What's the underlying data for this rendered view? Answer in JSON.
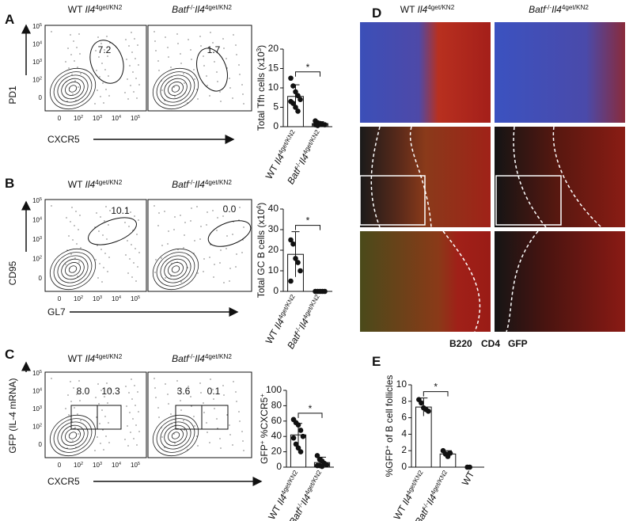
{
  "flow_ticks": [
    [
      {
        "text": "0"
      }
    ],
    [
      {
        "text": "10"
      },
      {
        "text": "2",
        "style": "sup"
      }
    ],
    [
      {
        "text": "10"
      },
      {
        "text": "3",
        "style": "sup"
      }
    ],
    [
      {
        "text": "10"
      },
      {
        "text": "4",
        "style": "sup"
      }
    ],
    [
      {
        "text": "10"
      },
      {
        "text": "5",
        "style": "sup"
      }
    ]
  ],
  "panels": {
    "A": {
      "letter": "A",
      "y_label": "PD1",
      "x_label": "CXCR5",
      "gates": [
        "7.2",
        "1.7"
      ],
      "headers": [
        [
          {
            "text": "WT "
          },
          {
            "text": "Il4",
            "style": "italic"
          },
          {
            "text": "4get/KN2",
            "style": "sup"
          }
        ],
        [
          {
            "text": "Batf",
            "style": "italic"
          },
          {
            "text": "-/-",
            "style": "sup"
          },
          {
            "text": "Il4",
            "style": "italic"
          },
          {
            "text": "4get/KN2",
            "style": "sup"
          }
        ]
      ]
    },
    "B": {
      "letter": "B",
      "y_label": "CD95",
      "x_label": "GL7",
      "gates": [
        "10.1",
        "0.0"
      ],
      "headers": [
        [
          {
            "text": "WT "
          },
          {
            "text": "Il4",
            "style": "italic"
          },
          {
            "text": "4get/KN2",
            "style": "sup"
          }
        ],
        [
          {
            "text": "Batf",
            "style": "italic"
          },
          {
            "text": "-/-",
            "style": "sup"
          },
          {
            "text": "Il4",
            "style": "italic"
          },
          {
            "text": "4get/KN2",
            "style": "sup"
          }
        ]
      ]
    },
    "C": {
      "letter": "C",
      "y_label": "GFP (IL-4 mRNA)",
      "x_label": "CXCR5",
      "gates": [
        "8.0",
        "10.3",
        "3.6",
        "0.1"
      ],
      "headers": [
        [
          {
            "text": "WT "
          },
          {
            "text": "Il4",
            "style": "italic"
          },
          {
            "text": "4get/KN2",
            "style": "sup"
          }
        ],
        [
          {
            "text": "Batf",
            "style": "italic"
          },
          {
            "text": "-/-",
            "style": "sup"
          },
          {
            "text": "Il4",
            "style": "italic"
          },
          {
            "text": "4get/KN2",
            "style": "sup"
          }
        ]
      ]
    },
    "D": {
      "letter": "D",
      "headers": [
        [
          {
            "text": "WT "
          },
          {
            "text": "Il4",
            "style": "italic"
          },
          {
            "text": "4get/KN2",
            "style": "sup"
          }
        ],
        [
          {
            "text": "Batf",
            "style": "italic"
          },
          {
            "text": "-/-",
            "style": "sup"
          },
          {
            "text": "Il4",
            "style": "italic"
          },
          {
            "text": "4get/KN2",
            "style": "sup"
          }
        ]
      ],
      "legend": [
        {
          "text": "B220",
          "color": "#4b5cc4"
        },
        {
          "text": "CD4",
          "color": "#d8262b"
        },
        {
          "text": "GFP",
          "color": "#6cc33a"
        }
      ]
    },
    "E": {
      "letter": "E"
    }
  },
  "chart_data": [
    {
      "type": "bar",
      "color": "#ffffff",
      "significance": "*",
      "y_label": [
        {
          "text": "Total Tfh cells (x10"
        },
        {
          "text": "3",
          "style": "sup"
        },
        {
          "text": ")"
        }
      ],
      "categories": [
        [
          {
            "text": "WT "
          },
          {
            "text": "Il4",
            "style": "italic"
          },
          {
            "text": "4get/KN2",
            "style": "sup"
          }
        ],
        [
          {
            "text": "Batf",
            "style": "italic"
          },
          {
            "text": "-/-",
            "style": "sup"
          },
          {
            "text": "Il4",
            "style": "italic"
          },
          {
            "text": "4get/KN2",
            "style": "sup"
          }
        ]
      ],
      "values": [
        7.8,
        0.8
      ],
      "errors": [
        3,
        0.5
      ],
      "points": [
        [
          12.5,
          10.5,
          9,
          8,
          7,
          6.5,
          6,
          5,
          4
        ],
        [
          1.5,
          1,
          0.8,
          0.6,
          0.5,
          0.5,
          0.3,
          0.8
        ]
      ],
      "ylim": [
        0,
        20
      ],
      "yticks": [
        0,
        5,
        10,
        15,
        20
      ]
    },
    {
      "type": "bar",
      "color": "#ffffff",
      "significance": "*",
      "y_label": [
        {
          "text": "Total GC B cells (x10"
        },
        {
          "text": "4",
          "style": "sup"
        },
        {
          "text": ")"
        }
      ],
      "categories": [
        [
          {
            "text": "WT "
          },
          {
            "text": "Il4",
            "style": "italic"
          },
          {
            "text": "4get/KN2",
            "style": "sup"
          }
        ],
        [
          {
            "text": "Batf",
            "style": "italic"
          },
          {
            "text": "-/-",
            "style": "sup"
          },
          {
            "text": "Il4",
            "style": "italic"
          },
          {
            "text": "4get/KN2",
            "style": "sup"
          }
        ]
      ],
      "values": [
        18,
        0
      ],
      "errors": [
        11,
        0
      ],
      "points": [
        [
          25,
          23,
          16,
          14,
          10,
          5
        ],
        [
          0,
          0,
          0,
          0,
          0
        ]
      ],
      "ylim": [
        0,
        40
      ],
      "yticks": [
        0,
        10,
        20,
        30,
        40
      ]
    },
    {
      "type": "bar",
      "color": "#ffffff",
      "significance": "*",
      "y_label": [
        {
          "text": "GFP"
        },
        {
          "text": "+",
          "style": "sup"
        },
        {
          "text": " %CXCR5"
        },
        {
          "text": "+",
          "style": "sup"
        }
      ],
      "categories": [
        [
          {
            "text": "WT "
          },
          {
            "text": "Il4",
            "style": "italic"
          },
          {
            "text": "4get/KN2",
            "style": "sup"
          }
        ],
        [
          {
            "text": "Batf",
            "style": "italic"
          },
          {
            "text": "-/-",
            "style": "sup"
          },
          {
            "text": "Il4",
            "style": "italic"
          },
          {
            "text": "4get/KN2",
            "style": "sup"
          }
        ]
      ],
      "values": [
        42,
        6
      ],
      "errors": [
        15,
        7
      ],
      "points": [
        [
          62,
          58,
          55,
          48,
          40,
          38,
          30,
          25,
          20
        ],
        [
          15,
          10,
          8,
          5,
          3,
          2,
          2,
          1
        ]
      ],
      "ylim": [
        0,
        100
      ],
      "yticks": [
        0,
        20,
        40,
        60,
        80,
        100
      ]
    },
    {
      "type": "bar",
      "color": "#ffffff",
      "significance": "*",
      "y_label": [
        {
          "text": "%GFP"
        },
        {
          "text": "+",
          "style": "sup"
        },
        {
          "text": " of B cell follicles"
        }
      ],
      "categories": [
        [
          {
            "text": "WT "
          },
          {
            "text": "Il4",
            "style": "italic"
          },
          {
            "text": "4get/KN2",
            "style": "sup"
          }
        ],
        [
          {
            "text": "Batf",
            "style": "italic"
          },
          {
            "text": "-/-",
            "style": "sup"
          },
          {
            "text": "Il4",
            "style": "italic"
          },
          {
            "text": "4get/KN2",
            "style": "sup"
          }
        ],
        [
          {
            "text": "WT"
          }
        ]
      ],
      "values": [
        7.3,
        1.6,
        0
      ],
      "errors": [
        1.1,
        0.4,
        0
      ],
      "points": [
        [
          8.2,
          7.8,
          7.2,
          7,
          6.8
        ],
        [
          2,
          1.6,
          1.3,
          1.7
        ],
        [
          0,
          0
        ]
      ],
      "ylim": [
        0,
        10
      ],
      "yticks": [
        0,
        2,
        4,
        6,
        8,
        10
      ]
    }
  ]
}
